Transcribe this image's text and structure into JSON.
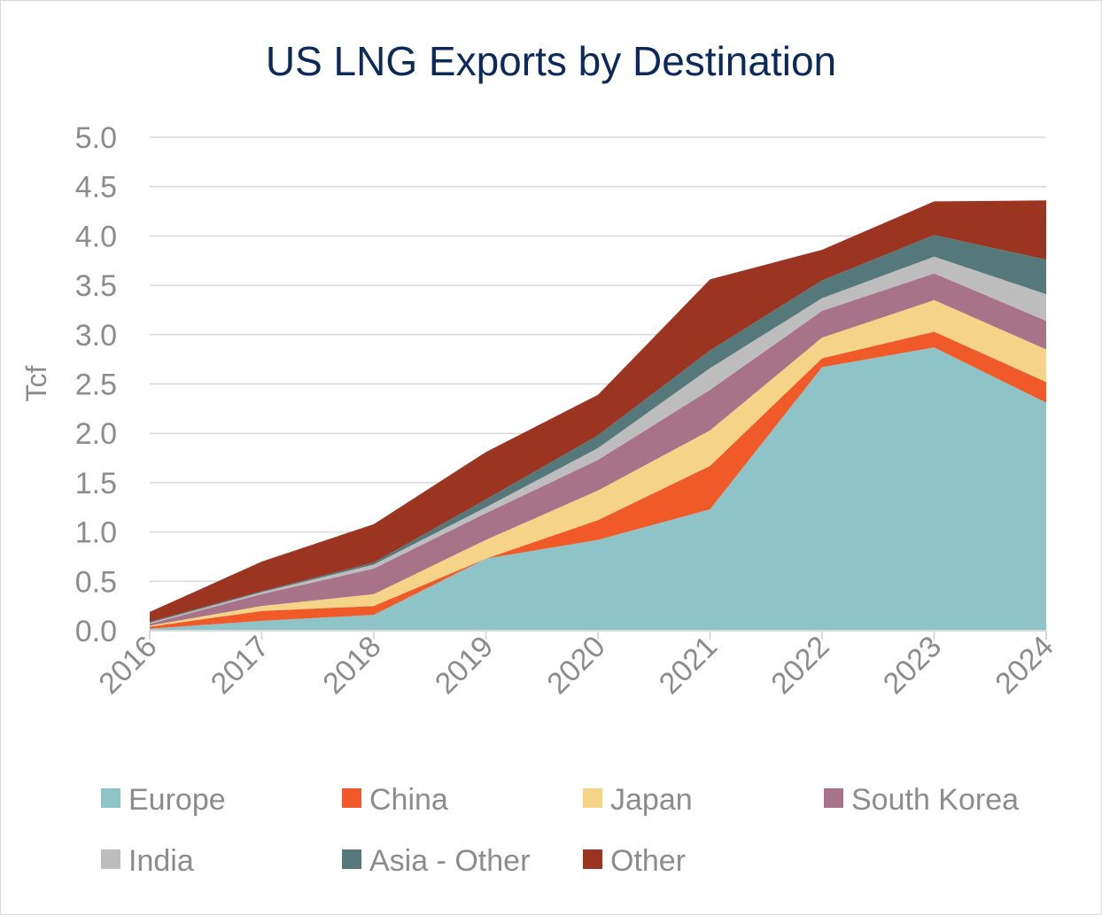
{
  "chart_data": {
    "type": "area",
    "stacked": true,
    "title": "US LNG Exports by Destination",
    "xlabel": "",
    "ylabel": "Tcf",
    "categories": [
      "2016",
      "2017",
      "2018",
      "2019",
      "2020",
      "2021",
      "2022",
      "2023",
      "2024"
    ],
    "ylim": [
      0,
      5.0
    ],
    "yticks": [
      "0.0",
      "0.5",
      "1.0",
      "1.5",
      "2.0",
      "2.5",
      "3.0",
      "3.5",
      "4.0",
      "4.5",
      "5.0"
    ],
    "grid": true,
    "legend_position": "bottom",
    "series": [
      {
        "name": "Europe",
        "color": "#8ec4c7",
        "values": [
          0.02,
          0.1,
          0.16,
          0.73,
          0.92,
          1.23,
          2.67,
          2.87,
          2.31
        ]
      },
      {
        "name": "China",
        "color": "#f05a28",
        "values": [
          0.02,
          0.1,
          0.09,
          0.0,
          0.2,
          0.44,
          0.09,
          0.16,
          0.21
        ]
      },
      {
        "name": "Japan",
        "color": "#f5d488",
        "values": [
          0.01,
          0.05,
          0.12,
          0.19,
          0.3,
          0.36,
          0.21,
          0.32,
          0.33
        ]
      },
      {
        "name": "South Korea",
        "color": "#a87289",
        "values": [
          0.02,
          0.12,
          0.26,
          0.27,
          0.31,
          0.41,
          0.27,
          0.27,
          0.29
        ]
      },
      {
        "name": "India",
        "color": "#bdbdbd",
        "values": [
          0.01,
          0.02,
          0.04,
          0.06,
          0.12,
          0.22,
          0.13,
          0.17,
          0.27
        ]
      },
      {
        "name": "Asia - Other",
        "color": "#55797a",
        "values": [
          0.01,
          0.01,
          0.02,
          0.08,
          0.13,
          0.18,
          0.18,
          0.22,
          0.35
        ]
      },
      {
        "name": "Other",
        "color": "#9b3521",
        "values": [
          0.1,
          0.3,
          0.39,
          0.48,
          0.41,
          0.72,
          0.31,
          0.34,
          0.6
        ]
      }
    ]
  }
}
